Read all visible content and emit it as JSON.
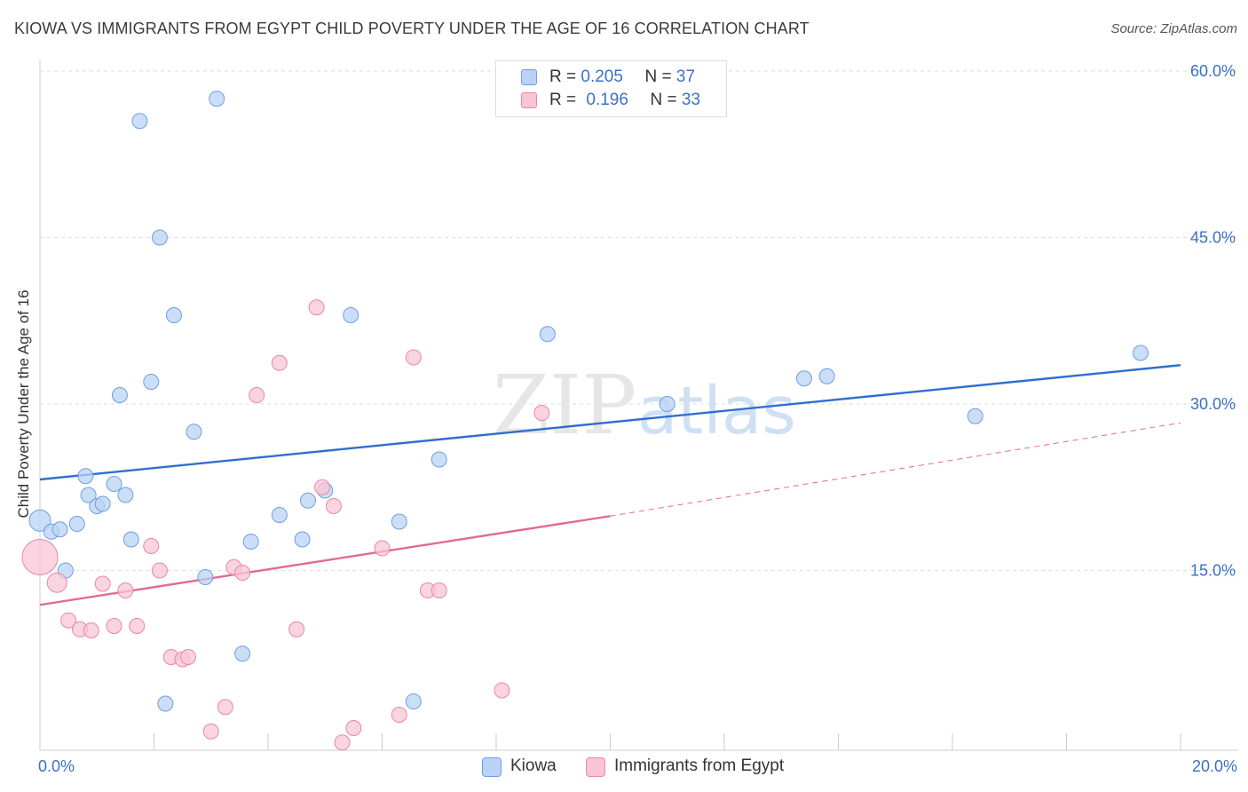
{
  "header": {
    "title": "KIOWA VS IMMIGRANTS FROM EGYPT CHILD POVERTY UNDER THE AGE OF 16 CORRELATION CHART",
    "source": "Source: ZipAtlas.com"
  },
  "legend_stats": [
    {
      "r_label": "R =",
      "r_value": "0.205",
      "n_label": "N =",
      "n_value": "37"
    },
    {
      "r_label": "R =",
      "r_value": "0.196",
      "n_label": "N =",
      "n_value": "33"
    }
  ],
  "watermark": {
    "part1": "ZIP",
    "part2": "atlas"
  },
  "colors": {
    "kiowa_fill": "#b9d3f5",
    "kiowa_stroke": "#6f9fe0",
    "kiowa_line": "#2f6fd0",
    "egypt_fill": "#f8c5d5",
    "egypt_stroke": "#e888a8",
    "egypt_line": "#e06a92",
    "tick_label": "#3a70c7",
    "grid": "#dddddd"
  },
  "chart_data": {
    "type": "scatter",
    "title": "KIOWA VS IMMIGRANTS FROM EGYPT CHILD POVERTY UNDER THE AGE OF 16 CORRELATION CHART",
    "xlabel": "",
    "ylabel": "Child Poverty Under the Age of 16",
    "xlim": [
      0,
      20
    ],
    "ylim": [
      0,
      60
    ],
    "x_tick_labels": [
      "0.0%",
      "20.0%"
    ],
    "y_ticks": [
      15,
      30,
      45,
      60
    ],
    "y_tick_labels": [
      "15.0%",
      "30.0%",
      "45.0%",
      "60.0%"
    ],
    "grid": true,
    "legend_position": "bottom",
    "series": [
      {
        "name": "Kiowa",
        "points": [
          [
            0.0,
            19.5
          ],
          [
            0.2,
            18.5
          ],
          [
            0.35,
            18.7
          ],
          [
            0.45,
            15.0
          ],
          [
            0.65,
            19.2
          ],
          [
            0.8,
            23.5
          ],
          [
            0.85,
            21.8
          ],
          [
            1.0,
            20.8
          ],
          [
            1.1,
            21.0
          ],
          [
            1.3,
            22.8
          ],
          [
            1.4,
            30.8
          ],
          [
            1.5,
            21.8
          ],
          [
            1.6,
            17.8
          ],
          [
            1.75,
            55.5
          ],
          [
            1.95,
            32.0
          ],
          [
            2.1,
            45.0
          ],
          [
            2.35,
            38.0
          ],
          [
            2.2,
            3.0
          ],
          [
            2.7,
            27.5
          ],
          [
            2.9,
            14.4
          ],
          [
            3.1,
            57.5
          ],
          [
            3.55,
            7.5
          ],
          [
            3.7,
            17.6
          ],
          [
            4.2,
            20.0
          ],
          [
            4.6,
            17.8
          ],
          [
            4.7,
            21.3
          ],
          [
            5.0,
            22.2
          ],
          [
            5.45,
            38.0
          ],
          [
            6.3,
            19.4
          ],
          [
            6.55,
            3.2
          ],
          [
            7.0,
            25.0
          ],
          [
            8.9,
            36.3
          ],
          [
            11.0,
            30.0
          ],
          [
            13.4,
            32.3
          ],
          [
            13.8,
            32.5
          ],
          [
            16.4,
            28.9
          ],
          [
            19.3,
            34.6
          ]
        ]
      },
      {
        "name": "Immigrants from Egypt",
        "points": [
          [
            0.0,
            16.2
          ],
          [
            0.3,
            13.9
          ],
          [
            0.5,
            10.5
          ],
          [
            0.7,
            9.7
          ],
          [
            0.9,
            9.6
          ],
          [
            1.1,
            13.8
          ],
          [
            1.3,
            10.0
          ],
          [
            1.5,
            13.2
          ],
          [
            1.7,
            10.0
          ],
          [
            1.95,
            17.2
          ],
          [
            2.1,
            15.0
          ],
          [
            2.3,
            7.2
          ],
          [
            2.5,
            7.0
          ],
          [
            2.6,
            7.2
          ],
          [
            3.0,
            0.5
          ],
          [
            3.25,
            2.7
          ],
          [
            3.4,
            15.3
          ],
          [
            3.55,
            14.8
          ],
          [
            4.2,
            33.7
          ],
          [
            3.8,
            30.8
          ],
          [
            4.5,
            9.7
          ],
          [
            4.85,
            38.7
          ],
          [
            4.95,
            22.5
          ],
          [
            5.15,
            20.8
          ],
          [
            5.3,
            -0.5
          ],
          [
            5.5,
            0.8
          ],
          [
            6.0,
            17.0
          ],
          [
            6.3,
            2.0
          ],
          [
            6.55,
            34.2
          ],
          [
            6.8,
            13.2
          ],
          [
            7.0,
            13.2
          ],
          [
            8.1,
            4.2
          ],
          [
            8.8,
            29.2
          ]
        ]
      }
    ],
    "trend_lines": [
      {
        "series": "Kiowa",
        "x": [
          0,
          20
        ],
        "y": [
          23.2,
          33.5
        ],
        "style": "solid"
      },
      {
        "series": "Immigrants from Egypt",
        "x": [
          0,
          10
        ],
        "y": [
          11.9,
          19.9
        ],
        "style": "solid"
      },
      {
        "series": "Immigrants from Egypt",
        "x": [
          10,
          20
        ],
        "y": [
          19.9,
          28.3
        ],
        "style": "dashed"
      }
    ]
  }
}
